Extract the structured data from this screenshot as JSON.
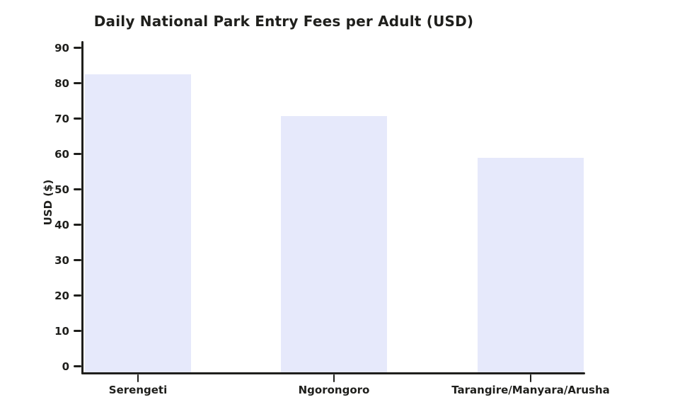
{
  "chart_data": {
    "type": "bar",
    "title": "Daily National Park Entry Fees per Adult (USD)",
    "xlabel": "",
    "ylabel": "USD ($)",
    "categories": [
      "Serengeti",
      "Ngorongoro",
      "Tarangire/Manyara/Arusha"
    ],
    "values": [
      82.6,
      70.8,
      59
    ],
    "yticks": [
      0,
      10,
      20,
      30,
      40,
      50,
      60,
      70,
      80,
      90
    ],
    "ylim": [
      0,
      90
    ],
    "grid": false,
    "legend": "none",
    "bar_color": "#e6e9fb",
    "axis_color": "#1f1f1c"
  }
}
